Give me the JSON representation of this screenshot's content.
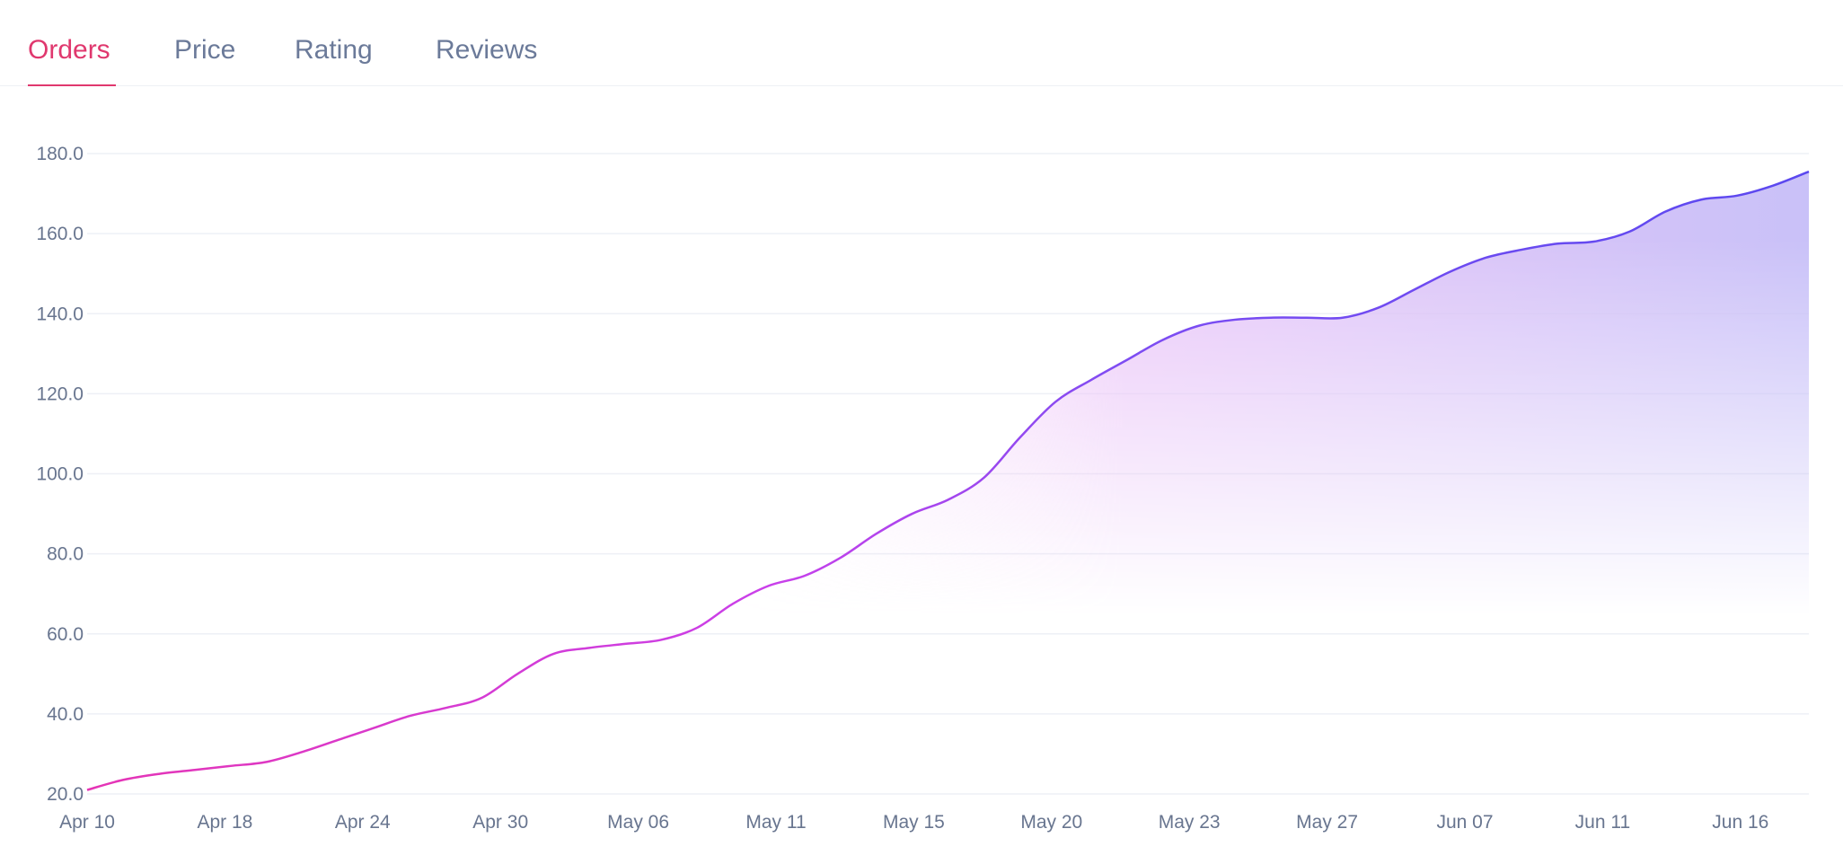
{
  "tabs": {
    "orders": "Orders",
    "price": "Price",
    "rating": "Rating",
    "reviews": "Reviews",
    "active": "Orders"
  },
  "colors": {
    "accent": "#e0386e",
    "tab_inactive": "#6b7a99",
    "line_start": "#e534b5",
    "line_mid": "#a64ff0",
    "line_end": "#5a48ef",
    "grid": "#eef0f6",
    "axis_text": "#68758f"
  },
  "chart_data": {
    "type": "area",
    "title": "",
    "xlabel": "",
    "ylabel": "",
    "ylim": [
      20,
      180
    ],
    "yticks": [
      "20.0",
      "40.0",
      "60.0",
      "80.0",
      "100.0",
      "120.0",
      "140.0",
      "160.0",
      "180.0"
    ],
    "xticks": [
      "Apr 10",
      "Apr 18",
      "Apr 24",
      "Apr 30",
      "May 06",
      "May 11",
      "May 15",
      "May 20",
      "May 23",
      "May 27",
      "Jun 07",
      "Jun 11",
      "Jun 16"
    ],
    "grid": true,
    "series": [
      {
        "name": "Orders",
        "values": [
          21,
          23.5,
          25,
          26,
          27,
          28,
          30.5,
          33.5,
          36.5,
          39.5,
          41.5,
          44,
          50,
          55,
          56.5,
          57.5,
          58.5,
          61.5,
          67.5,
          72,
          74.5,
          79,
          85,
          90,
          93.5,
          99,
          109,
          118,
          123.5,
          128.5,
          133.5,
          137,
          138.5,
          139,
          139,
          139,
          141.5,
          146,
          150.5,
          154,
          156,
          157.5,
          158,
          160.5,
          165.5,
          168.5,
          169.5,
          172,
          175.5
        ]
      }
    ]
  }
}
